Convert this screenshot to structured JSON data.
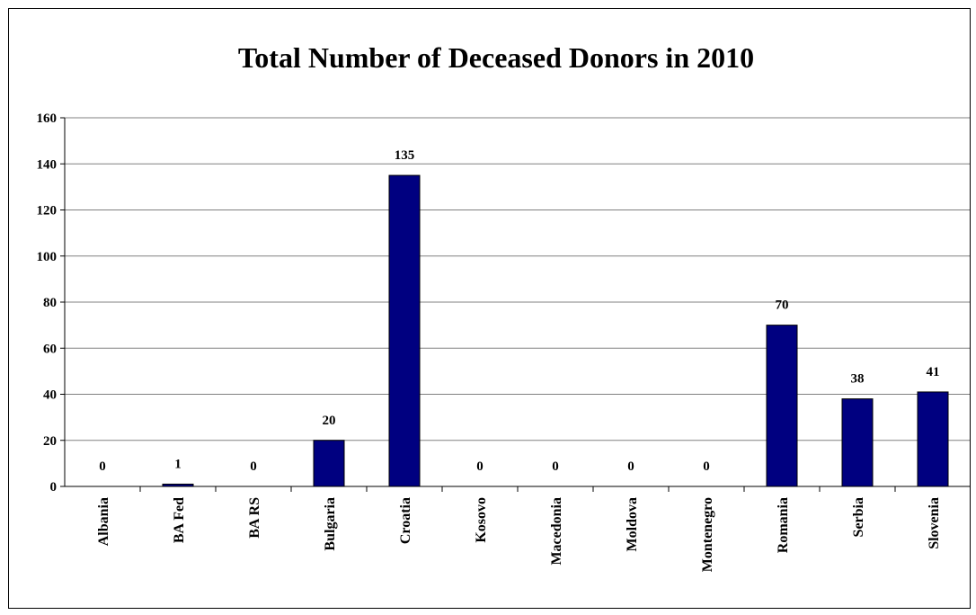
{
  "chart_data": {
    "type": "bar",
    "title": "Total Number of Deceased Donors in 2010",
    "xlabel": "",
    "ylabel": "",
    "categories": [
      "Albania",
      "BA Fed",
      "BA RS",
      "Bulgaria",
      "Croatia",
      "Kosovo",
      "Macedonia",
      "Moldova",
      "Montenegro",
      "Romania",
      "Serbia",
      "Slovenia"
    ],
    "values": [
      0,
      1,
      0,
      20,
      135,
      0,
      0,
      0,
      0,
      70,
      38,
      41
    ],
    "data_labels": [
      "0",
      "1",
      "0",
      "20",
      "135",
      "0",
      "0",
      "0",
      "0",
      "70",
      "38",
      "41"
    ],
    "ylim": [
      0,
      160
    ],
    "yticks": [
      0,
      20,
      40,
      60,
      80,
      100,
      120,
      140,
      160
    ],
    "ytick_labels": [
      "0",
      "20",
      "40",
      "60",
      "80",
      "100",
      "120",
      "140",
      "160"
    ],
    "grid": true,
    "legend": "none",
    "colors": {
      "bar": "#000080",
      "bar_border": "#000000",
      "grid": "#808080"
    }
  }
}
